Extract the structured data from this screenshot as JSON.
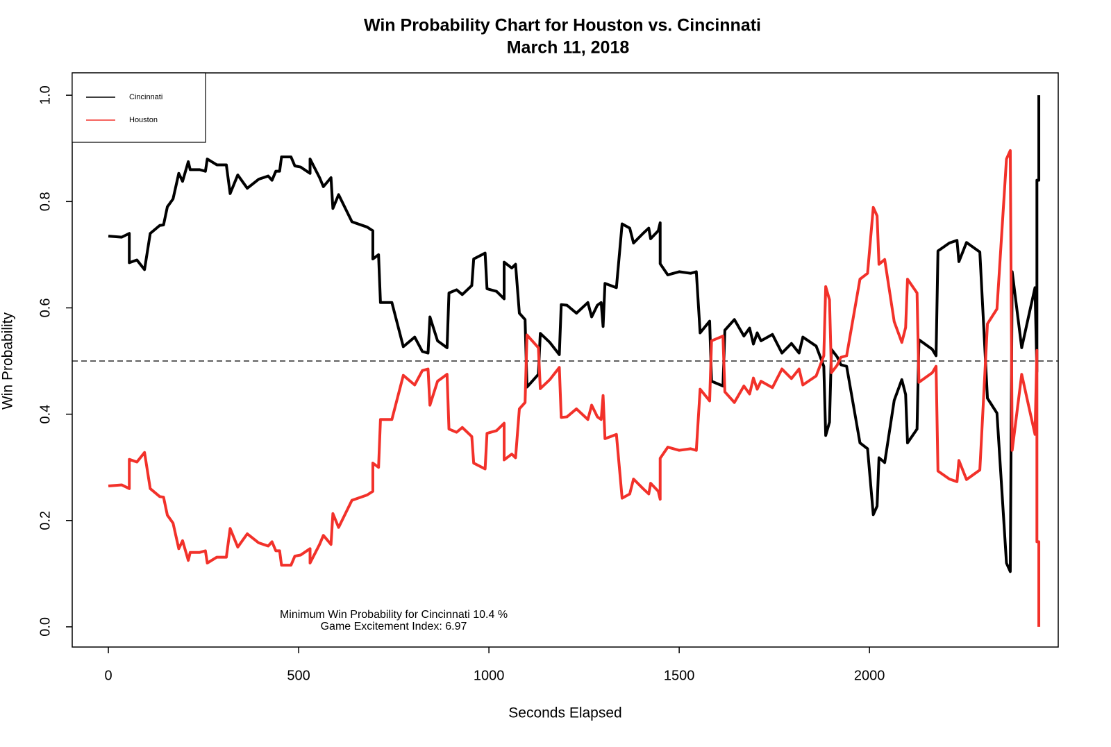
{
  "chart_data": {
    "type": "line",
    "title": "Win Probability Chart for Houston vs. Cincinnati",
    "subtitle": "March 11, 2018",
    "xlabel": "Seconds Elapsed",
    "ylabel": "Win Probability",
    "annotations": [
      "Minimum Win Probability for Cincinnati 10.4 %",
      "Game Excitement Index: 6.97"
    ],
    "reference_line": 0.5,
    "legend": "upper left",
    "xlim": [
      -95,
      2496
    ],
    "ylim": [
      -0.038,
      1.042
    ],
    "xticks": [
      0,
      500,
      1000,
      1500,
      2000
    ],
    "yticks": [
      {
        "value": 0,
        "label": "0.0"
      },
      0.2,
      0.4,
      0.6,
      0.8,
      {
        "value": 1,
        "label": "1.0"
      }
    ],
    "x": [
      0,
      35,
      55,
      55,
      75,
      95,
      110,
      135,
      145,
      155,
      170,
      185,
      195,
      210,
      215,
      240,
      255,
      260,
      285,
      310,
      320,
      340,
      365,
      395,
      420,
      430,
      440,
      450,
      455,
      480,
      490,
      505,
      530,
      530,
      555,
      565,
      585,
      590,
      605,
      640,
      680,
      695,
      695,
      710,
      715,
      745,
      775,
      805,
      825,
      840,
      845,
      865,
      890,
      895,
      915,
      930,
      955,
      960,
      990,
      995,
      1020,
      1040,
      1040,
      1060,
      1070,
      1080,
      1095,
      1100,
      1130,
      1135,
      1160,
      1185,
      1190,
      1205,
      1230,
      1260,
      1270,
      1285,
      1295,
      1300,
      1305,
      1335,
      1350,
      1370,
      1380,
      1405,
      1420,
      1425,
      1445,
      1450,
      1450,
      1470,
      1500,
      1530,
      1545,
      1555,
      1580,
      1585,
      1615,
      1620,
      1645,
      1670,
      1685,
      1695,
      1705,
      1715,
      1745,
      1770,
      1795,
      1815,
      1825,
      1860,
      1880,
      1885,
      1895,
      1900,
      1915,
      1925,
      1940,
      1975,
      1995,
      2010,
      2020,
      2025,
      2040,
      2065,
      2085,
      2095,
      2100,
      2125,
      2130,
      2165,
      2175,
      2180,
      2210,
      2230,
      2235,
      2255,
      2290,
      2310,
      2335,
      2360,
      2370,
      2375,
      2400,
      2420,
      2435,
      2440,
      2440,
      2445,
      2445
    ],
    "series": [
      {
        "name": "Cincinnati",
        "color": "#000000",
        "values": [
          0.735,
          0.733,
          0.74,
          0.685,
          0.69,
          0.672,
          0.74,
          0.755,
          0.756,
          0.79,
          0.805,
          0.853,
          0.838,
          0.875,
          0.86,
          0.86,
          0.857,
          0.88,
          0.869,
          0.869,
          0.815,
          0.85,
          0.825,
          0.842,
          0.848,
          0.84,
          0.857,
          0.857,
          0.884,
          0.884,
          0.867,
          0.865,
          0.853,
          0.88,
          0.845,
          0.828,
          0.845,
          0.787,
          0.813,
          0.762,
          0.752,
          0.745,
          0.692,
          0.7,
          0.61,
          0.61,
          0.527,
          0.545,
          0.518,
          0.515,
          0.583,
          0.538,
          0.525,
          0.628,
          0.634,
          0.625,
          0.642,
          0.692,
          0.703,
          0.636,
          0.631,
          0.617,
          0.686,
          0.675,
          0.682,
          0.59,
          0.578,
          0.451,
          0.475,
          0.552,
          0.535,
          0.512,
          0.606,
          0.605,
          0.59,
          0.61,
          0.583,
          0.605,
          0.61,
          0.565,
          0.646,
          0.638,
          0.758,
          0.75,
          0.722,
          0.74,
          0.75,
          0.73,
          0.745,
          0.76,
          0.683,
          0.662,
          0.668,
          0.665,
          0.668,
          0.553,
          0.575,
          0.462,
          0.453,
          0.558,
          0.578,
          0.547,
          0.562,
          0.532,
          0.553,
          0.538,
          0.55,
          0.515,
          0.533,
          0.515,
          0.545,
          0.528,
          0.49,
          0.36,
          0.385,
          0.522,
          0.508,
          0.493,
          0.49,
          0.346,
          0.335,
          0.211,
          0.227,
          0.318,
          0.309,
          0.426,
          0.465,
          0.437,
          0.346,
          0.372,
          0.54,
          0.522,
          0.51,
          0.707,
          0.722,
          0.727,
          0.687,
          0.723,
          0.705,
          0.43,
          0.402,
          0.12,
          0.104,
          0.668,
          0.525,
          0.59,
          0.638,
          0.48,
          0.84,
          0.84,
          1.0
        ]
      },
      {
        "name": "Houston",
        "color": "#f2312a",
        "values": [
          0.265,
          0.267,
          0.26,
          0.315,
          0.31,
          0.328,
          0.26,
          0.245,
          0.244,
          0.21,
          0.195,
          0.147,
          0.162,
          0.125,
          0.14,
          0.14,
          0.143,
          0.12,
          0.131,
          0.131,
          0.185,
          0.15,
          0.175,
          0.158,
          0.152,
          0.16,
          0.143,
          0.143,
          0.116,
          0.116,
          0.133,
          0.135,
          0.147,
          0.12,
          0.155,
          0.172,
          0.155,
          0.213,
          0.187,
          0.238,
          0.248,
          0.255,
          0.308,
          0.3,
          0.39,
          0.39,
          0.473,
          0.455,
          0.482,
          0.485,
          0.417,
          0.462,
          0.475,
          0.372,
          0.366,
          0.375,
          0.358,
          0.308,
          0.297,
          0.364,
          0.369,
          0.383,
          0.314,
          0.325,
          0.318,
          0.41,
          0.422,
          0.549,
          0.525,
          0.448,
          0.465,
          0.488,
          0.394,
          0.395,
          0.41,
          0.39,
          0.417,
          0.395,
          0.39,
          0.435,
          0.354,
          0.362,
          0.242,
          0.25,
          0.278,
          0.26,
          0.25,
          0.27,
          0.255,
          0.24,
          0.317,
          0.338,
          0.332,
          0.335,
          0.332,
          0.447,
          0.425,
          0.538,
          0.547,
          0.442,
          0.422,
          0.453,
          0.438,
          0.468,
          0.447,
          0.462,
          0.45,
          0.485,
          0.467,
          0.485,
          0.455,
          0.472,
          0.51,
          0.64,
          0.615,
          0.478,
          0.492,
          0.507,
          0.51,
          0.654,
          0.665,
          0.789,
          0.773,
          0.682,
          0.691,
          0.574,
          0.535,
          0.563,
          0.654,
          0.628,
          0.46,
          0.478,
          0.49,
          0.293,
          0.278,
          0.273,
          0.313,
          0.277,
          0.295,
          0.57,
          0.598,
          0.88,
          0.896,
          0.332,
          0.475,
          0.41,
          0.362,
          0.52,
          0.16,
          0.16,
          0.0
        ]
      }
    ]
  }
}
